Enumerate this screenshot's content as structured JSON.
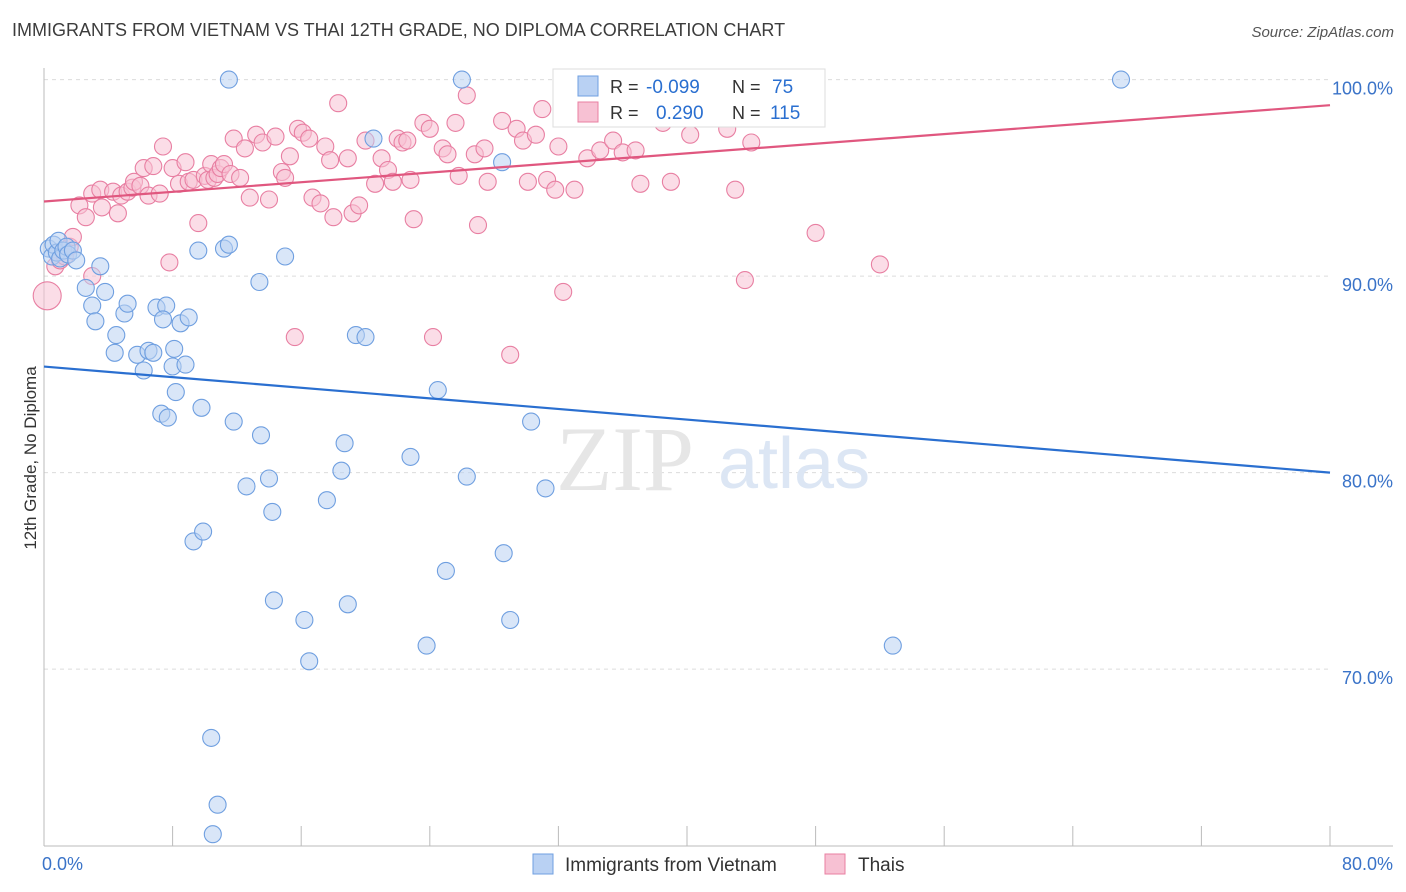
{
  "header": {
    "title": "IMMIGRANTS FROM VIETNAM VS THAI 12TH GRADE, NO DIPLOMA CORRELATION CHART",
    "source": "Source: ZipAtlas.com"
  },
  "watermark": {
    "zip": "ZIP",
    "atlas": "atlas"
  },
  "colors": {
    "blue": "#6f9fe0",
    "blue_fill": "#b9d1f3",
    "blue_line": "#2a6fd0",
    "pink": "#e87fa2",
    "pink_fill": "#f7c1d3",
    "pink_line": "#e0577f",
    "axis_label": "#3a73c8"
  },
  "stats": {
    "r_label": "R =",
    "n_label": "N =",
    "rows": [
      {
        "r": "-0.099",
        "n": "75"
      },
      {
        "r": "0.290",
        "n": "115"
      }
    ]
  },
  "chart_data": {
    "type": "scatter",
    "xlabel": "",
    "ylabel": "12th Grade, No Diploma",
    "xlim": [
      0,
      80
    ],
    "ylim": [
      61,
      101
    ],
    "x_tick_labels": [
      "0.0%",
      "80.0%"
    ],
    "y_ticks": [
      70,
      80,
      90,
      100
    ],
    "y_tick_labels": [
      "70.0%",
      "80.0%",
      "90.0%",
      "100.0%"
    ],
    "grid": true,
    "legend_position": "bottom",
    "series": [
      {
        "name": "Immigrants from Vietnam",
        "color": "#6f9fe0",
        "trend": {
          "x": [
            0,
            80
          ],
          "y": [
            85.4,
            80.0
          ]
        },
        "points": [
          [
            0.3,
            91.4
          ],
          [
            0.5,
            91.0
          ],
          [
            0.6,
            91.6
          ],
          [
            0.8,
            91.2
          ],
          [
            0.9,
            91.8
          ],
          [
            1.0,
            90.9
          ],
          [
            1.2,
            91.3
          ],
          [
            1.4,
            91.5
          ],
          [
            1.5,
            91.1
          ],
          [
            1.8,
            91.3
          ],
          [
            2.0,
            90.8
          ],
          [
            2.6,
            89.4
          ],
          [
            3.0,
            88.5
          ],
          [
            3.2,
            87.7
          ],
          [
            3.5,
            90.5
          ],
          [
            3.8,
            89.2
          ],
          [
            4.5,
            87.0
          ],
          [
            4.4,
            86.1
          ],
          [
            5.0,
            88.1
          ],
          [
            5.2,
            88.6
          ],
          [
            5.8,
            86.0
          ],
          [
            6.2,
            85.2
          ],
          [
            6.5,
            86.2
          ],
          [
            6.8,
            86.1
          ],
          [
            7.0,
            88.4
          ],
          [
            7.3,
            83.0
          ],
          [
            7.6,
            88.5
          ],
          [
            7.4,
            87.8
          ],
          [
            7.7,
            82.8
          ],
          [
            8.0,
            85.4
          ],
          [
            8.2,
            84.1
          ],
          [
            8.1,
            86.3
          ],
          [
            8.5,
            87.6
          ],
          [
            8.8,
            85.5
          ],
          [
            9.0,
            87.9
          ],
          [
            9.3,
            76.5
          ],
          [
            9.6,
            91.3
          ],
          [
            9.9,
            77.0
          ],
          [
            9.8,
            83.3
          ],
          [
            10.4,
            66.5
          ],
          [
            10.8,
            63.1
          ],
          [
            10.5,
            61.6
          ],
          [
            11.2,
            91.4
          ],
          [
            11.5,
            91.6
          ],
          [
            11.5,
            100.0
          ],
          [
            11.8,
            82.6
          ],
          [
            12.6,
            79.3
          ],
          [
            13.5,
            81.9
          ],
          [
            13.4,
            89.7
          ],
          [
            14.0,
            79.7
          ],
          [
            14.2,
            78.0
          ],
          [
            14.3,
            73.5
          ],
          [
            15.0,
            91.0
          ],
          [
            16.2,
            72.5
          ],
          [
            16.5,
            70.4
          ],
          [
            17.6,
            78.6
          ],
          [
            18.5,
            80.1
          ],
          [
            18.7,
            81.5
          ],
          [
            18.9,
            73.3
          ],
          [
            19.4,
            87.0
          ],
          [
            20.0,
            86.9
          ],
          [
            20.5,
            97.0
          ],
          [
            22.8,
            80.8
          ],
          [
            23.8,
            71.2
          ],
          [
            24.5,
            84.2
          ],
          [
            25.0,
            75.0
          ],
          [
            26.0,
            100.0
          ],
          [
            26.3,
            79.8
          ],
          [
            28.5,
            95.8
          ],
          [
            28.6,
            75.9
          ],
          [
            29.0,
            72.5
          ],
          [
            30.3,
            82.6
          ],
          [
            31.2,
            79.2
          ],
          [
            52.8,
            71.2
          ],
          [
            67.0,
            100.0
          ]
        ]
      },
      {
        "name": "Thais",
        "color": "#e87fa2",
        "trend": {
          "x": [
            0,
            80
          ],
          "y": [
            93.8,
            98.7
          ]
        },
        "points": [
          [
            0.2,
            89.0
          ],
          [
            0.7,
            90.5
          ],
          [
            1.0,
            90.8
          ],
          [
            1.3,
            91.0
          ],
          [
            1.6,
            91.5
          ],
          [
            1.8,
            92.0
          ],
          [
            2.2,
            93.6
          ],
          [
            2.6,
            93.0
          ],
          [
            3.0,
            90.0
          ],
          [
            3.0,
            94.2
          ],
          [
            3.5,
            94.4
          ],
          [
            3.6,
            93.5
          ],
          [
            4.3,
            94.3
          ],
          [
            4.6,
            93.2
          ],
          [
            4.8,
            94.1
          ],
          [
            5.2,
            94.3
          ],
          [
            5.5,
            94.5
          ],
          [
            5.6,
            94.8
          ],
          [
            6.0,
            94.6
          ],
          [
            6.2,
            95.5
          ],
          [
            6.5,
            94.1
          ],
          [
            6.8,
            95.6
          ],
          [
            7.2,
            94.2
          ],
          [
            7.4,
            96.6
          ],
          [
            7.8,
            90.7
          ],
          [
            8.0,
            95.5
          ],
          [
            8.4,
            94.7
          ],
          [
            8.8,
            95.8
          ],
          [
            9.0,
            94.8
          ],
          [
            9.3,
            94.9
          ],
          [
            9.6,
            92.7
          ],
          [
            10.0,
            95.1
          ],
          [
            10.2,
            94.9
          ],
          [
            10.4,
            95.7
          ],
          [
            10.6,
            95.0
          ],
          [
            10.8,
            95.2
          ],
          [
            11.0,
            95.5
          ],
          [
            11.2,
            95.7
          ],
          [
            11.6,
            95.2
          ],
          [
            11.8,
            97.0
          ],
          [
            12.2,
            95.0
          ],
          [
            12.5,
            96.5
          ],
          [
            12.8,
            94.0
          ],
          [
            13.2,
            97.2
          ],
          [
            13.6,
            96.8
          ],
          [
            14.0,
            93.9
          ],
          [
            14.4,
            97.1
          ],
          [
            14.8,
            95.3
          ],
          [
            15.0,
            95.0
          ],
          [
            15.3,
            96.1
          ],
          [
            15.6,
            86.9
          ],
          [
            15.8,
            97.5
          ],
          [
            16.1,
            97.3
          ],
          [
            16.5,
            97.0
          ],
          [
            16.7,
            94.0
          ],
          [
            17.2,
            93.7
          ],
          [
            17.5,
            96.6
          ],
          [
            17.8,
            95.9
          ],
          [
            18.0,
            93.0
          ],
          [
            18.3,
            98.8
          ],
          [
            18.9,
            96.0
          ],
          [
            19.2,
            93.2
          ],
          [
            19.6,
            93.6
          ],
          [
            20.0,
            96.9
          ],
          [
            20.6,
            94.7
          ],
          [
            21.0,
            96.0
          ],
          [
            21.4,
            95.4
          ],
          [
            21.7,
            94.8
          ],
          [
            22.0,
            97.0
          ],
          [
            22.3,
            96.8
          ],
          [
            22.6,
            96.9
          ],
          [
            22.8,
            94.9
          ],
          [
            23.0,
            92.9
          ],
          [
            23.6,
            97.8
          ],
          [
            24.0,
            97.5
          ],
          [
            24.2,
            86.9
          ],
          [
            24.8,
            96.5
          ],
          [
            25.1,
            96.2
          ],
          [
            25.6,
            97.8
          ],
          [
            25.8,
            95.1
          ],
          [
            26.3,
            99.2
          ],
          [
            26.8,
            96.2
          ],
          [
            27.0,
            92.6
          ],
          [
            27.4,
            96.5
          ],
          [
            27.6,
            94.8
          ],
          [
            28.5,
            97.9
          ],
          [
            29.0,
            86.0
          ],
          [
            29.4,
            97.5
          ],
          [
            29.8,
            96.9
          ],
          [
            30.1,
            94.8
          ],
          [
            30.6,
            97.2
          ],
          [
            31.0,
            98.5
          ],
          [
            31.3,
            94.9
          ],
          [
            31.8,
            94.4
          ],
          [
            32.0,
            96.6
          ],
          [
            32.3,
            89.2
          ],
          [
            32.5,
            100.0
          ],
          [
            33.0,
            94.4
          ],
          [
            33.8,
            96.0
          ],
          [
            34.6,
            96.4
          ],
          [
            35.4,
            96.9
          ],
          [
            36.0,
            96.3
          ],
          [
            36.8,
            96.4
          ],
          [
            37.1,
            94.7
          ],
          [
            37.4,
            98.9
          ],
          [
            38.0,
            100.0
          ],
          [
            38.5,
            97.8
          ],
          [
            39.0,
            94.8
          ],
          [
            40.2,
            97.2
          ],
          [
            40.5,
            99.0
          ],
          [
            41.5,
            100.0
          ],
          [
            42.5,
            97.5
          ],
          [
            43.0,
            94.4
          ],
          [
            43.6,
            89.8
          ],
          [
            44.0,
            96.8
          ],
          [
            48.0,
            92.2
          ],
          [
            52.0,
            90.6
          ]
        ]
      }
    ]
  }
}
